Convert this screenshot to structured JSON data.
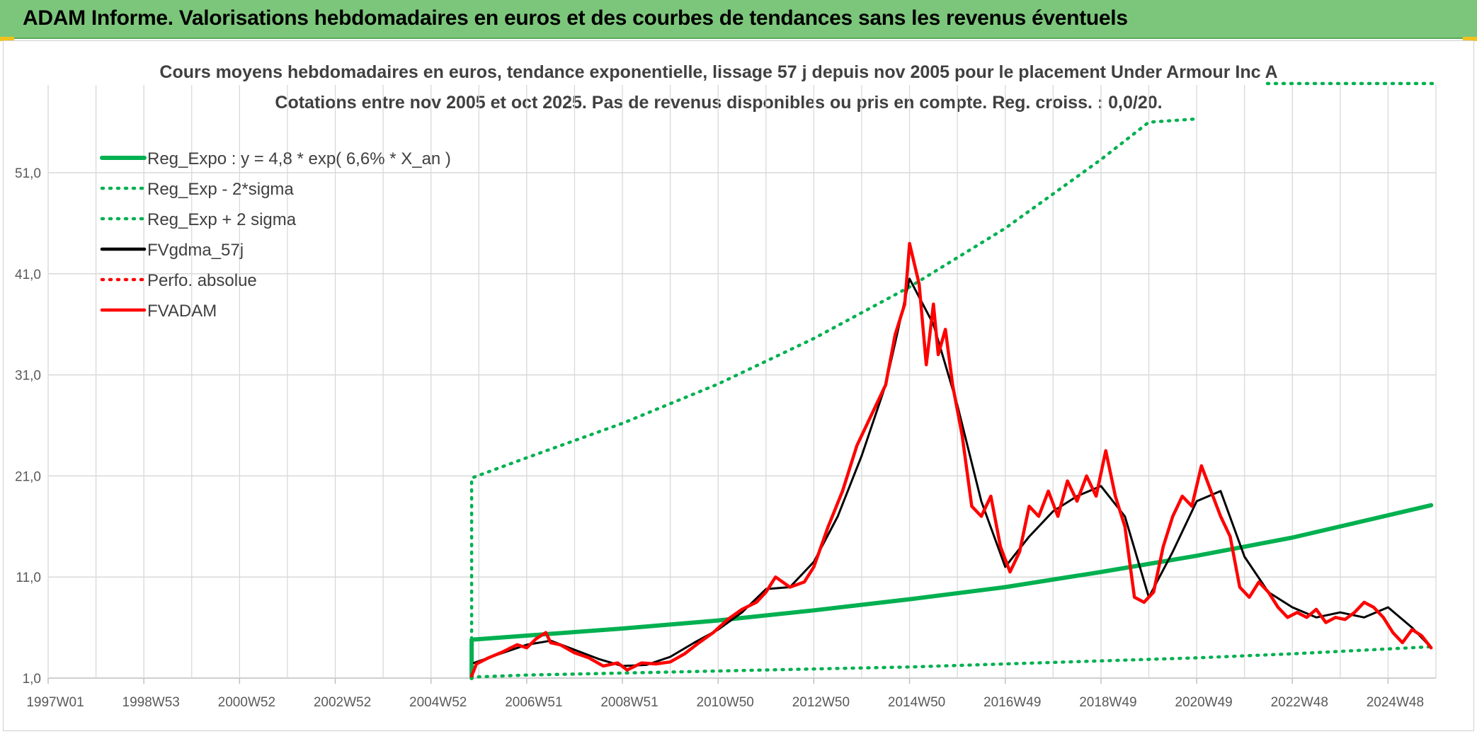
{
  "header": {
    "title": "ADAM Informe. Valorisations hebdomadaires en euros et des courbes de tendances sans les revenus éventuels"
  },
  "colors": {
    "header_bg": "#7cc67c",
    "reg_green": "#00b050",
    "red": "#ff0000",
    "black": "#000000",
    "grid": "#d9d9d9"
  },
  "chart_data": {
    "type": "line",
    "title": "Cours moyens hebdomadaires en euros, tendance exponentielle, lissage 57 j depuis nov 2005 pour le placement Under Armour Inc A",
    "subtitle": "Cotations entre nov 2005 et oct 2025. Pas de revenus disponibles ou pris en compte. Reg. croiss. : 0,0/20.",
    "xlabel": "",
    "ylabel": "",
    "x_tick_labels": [
      "1997W01",
      "1998W53",
      "2000W52",
      "2002W52",
      "2004W52",
      "2006W51",
      "2008W51",
      "2010W50",
      "2012W50",
      "2014W50",
      "2016W49",
      "2018W49",
      "2020W49",
      "2022W48",
      "2024W48"
    ],
    "y_tick_labels": [
      "1,0",
      "11,0",
      "21,0",
      "31,0",
      "41,0",
      "51,0"
    ],
    "xlim": [
      1997.0,
      2026.2
    ],
    "ylim": [
      1.0,
      58.0
    ],
    "legend_position": "top-left",
    "grid": true,
    "series": [
      {
        "name": "Reg_Expo : y = 4,8 * exp( 6,6% *  X_an )",
        "style": "solid-thick",
        "color": "#00b050",
        "x": [
          2005.85,
          2007,
          2009,
          2011,
          2013,
          2015,
          2017,
          2019,
          2021,
          2023,
          2025.9
        ],
        "y": [
          4.8,
          5.2,
          5.9,
          6.7,
          7.7,
          8.8,
          10.0,
          11.5,
          13.1,
          14.9,
          18.1
        ]
      },
      {
        "name": "Reg_Exp - 2*sigma",
        "style": "dotted",
        "color": "#00b050",
        "x": [
          2005.85,
          2007,
          2009,
          2011,
          2013,
          2015,
          2017,
          2019,
          2021,
          2023,
          2025.9
        ],
        "y": [
          1.1,
          1.3,
          1.5,
          1.7,
          1.9,
          2.1,
          2.4,
          2.7,
          3.0,
          3.4,
          4.1
        ]
      },
      {
        "name": "Reg_Exp + 2 sigma",
        "style": "dotted",
        "color": "#00b050",
        "x": [
          2005.85,
          2007,
          2009,
          2011,
          2013,
          2015,
          2017,
          2019,
          2020,
          2021
        ],
        "y": [
          20.8,
          22.8,
          26.2,
          30.1,
          34.6,
          39.7,
          45.5,
          52.3,
          56.0,
          58.0
        ]
      },
      {
        "name": "FVgdma_57j",
        "style": "solid",
        "color": "#000000",
        "x": [
          2005.9,
          2006.5,
          2007.0,
          2007.5,
          2008.0,
          2008.5,
          2009.0,
          2009.5,
          2010.0,
          2010.5,
          2011.0,
          2011.5,
          2012.0,
          2012.5,
          2013.0,
          2013.5,
          2014.0,
          2014.5,
          2015.0,
          2015.5,
          2016.0,
          2016.5,
          2017.0,
          2017.5,
          2018.0,
          2018.5,
          2019.0,
          2019.5,
          2020.0,
          2020.5,
          2021.0,
          2021.5,
          2022.0,
          2022.5,
          2023.0,
          2023.5,
          2024.0,
          2024.5,
          2025.0,
          2025.5,
          2025.8
        ],
        "y": [
          2.5,
          3.5,
          4.3,
          4.7,
          3.8,
          2.9,
          2.2,
          2.3,
          3.1,
          4.5,
          5.8,
          7.5,
          9.8,
          10.0,
          12.5,
          17.0,
          23.0,
          30.0,
          40.5,
          36.0,
          28.0,
          18.5,
          12.0,
          15.0,
          17.5,
          19.0,
          20.0,
          17.0,
          9.0,
          13.5,
          18.5,
          19.5,
          13.0,
          9.5,
          8.0,
          7.0,
          7.5,
          7.0,
          8.0,
          6.0,
          4.5
        ]
      },
      {
        "name": "Perfo. absolue",
        "style": "dotted",
        "color": "#ff0000",
        "x": [],
        "y": []
      },
      {
        "name": "FVADAM",
        "style": "solid-thick",
        "color": "#ff0000",
        "x": [
          2005.85,
          2005.95,
          2006.2,
          2006.5,
          2006.8,
          2007.0,
          2007.2,
          2007.4,
          2007.5,
          2007.7,
          2008.0,
          2008.3,
          2008.6,
          2008.9,
          2009.1,
          2009.4,
          2009.7,
          2010.0,
          2010.3,
          2010.6,
          2010.9,
          2011.2,
          2011.5,
          2011.8,
          2012.0,
          2012.2,
          2012.5,
          2012.8,
          2013.0,
          2013.3,
          2013.6,
          2013.9,
          2014.2,
          2014.5,
          2014.7,
          2014.9,
          2015.0,
          2015.1,
          2015.2,
          2015.35,
          2015.5,
          2015.6,
          2015.75,
          2015.9,
          2016.1,
          2016.3,
          2016.5,
          2016.7,
          2016.9,
          2017.1,
          2017.3,
          2017.5,
          2017.7,
          2017.9,
          2018.1,
          2018.3,
          2018.5,
          2018.7,
          2018.9,
          2019.1,
          2019.3,
          2019.5,
          2019.7,
          2019.9,
          2020.1,
          2020.3,
          2020.5,
          2020.7,
          2020.9,
          2021.1,
          2021.3,
          2021.5,
          2021.7,
          2021.9,
          2022.1,
          2022.3,
          2022.5,
          2022.7,
          2022.9,
          2023.1,
          2023.3,
          2023.5,
          2023.7,
          2023.9,
          2024.1,
          2024.3,
          2024.5,
          2024.7,
          2024.9,
          2025.1,
          2025.3,
          2025.5,
          2025.7,
          2025.9
        ],
        "y": [
          1.2,
          2.4,
          3.0,
          3.6,
          4.3,
          4.0,
          4.9,
          5.5,
          4.5,
          4.3,
          3.5,
          3.0,
          2.2,
          2.5,
          1.8,
          2.5,
          2.4,
          2.6,
          3.4,
          4.5,
          5.5,
          6.8,
          7.8,
          8.5,
          9.5,
          11.0,
          10.0,
          10.5,
          12.0,
          16.0,
          19.5,
          24.0,
          27.0,
          30.0,
          35.0,
          38.0,
          44.0,
          42.0,
          40.0,
          32.0,
          38.0,
          33.0,
          35.5,
          30.0,
          25.0,
          18.0,
          17.0,
          19.0,
          14.0,
          11.5,
          13.5,
          18.0,
          17.0,
          19.5,
          17.0,
          20.5,
          18.5,
          21.0,
          19.0,
          23.5,
          19.0,
          16.0,
          9.0,
          8.5,
          9.5,
          14.0,
          17.0,
          19.0,
          18.0,
          22.0,
          19.5,
          17.0,
          15.0,
          10.0,
          9.0,
          10.5,
          9.5,
          8.0,
          7.0,
          7.5,
          7.0,
          7.8,
          6.5,
          7.0,
          6.8,
          7.5,
          8.5,
          8.0,
          7.0,
          5.5,
          4.5,
          5.8,
          5.2,
          4.0
        ]
      }
    ]
  }
}
